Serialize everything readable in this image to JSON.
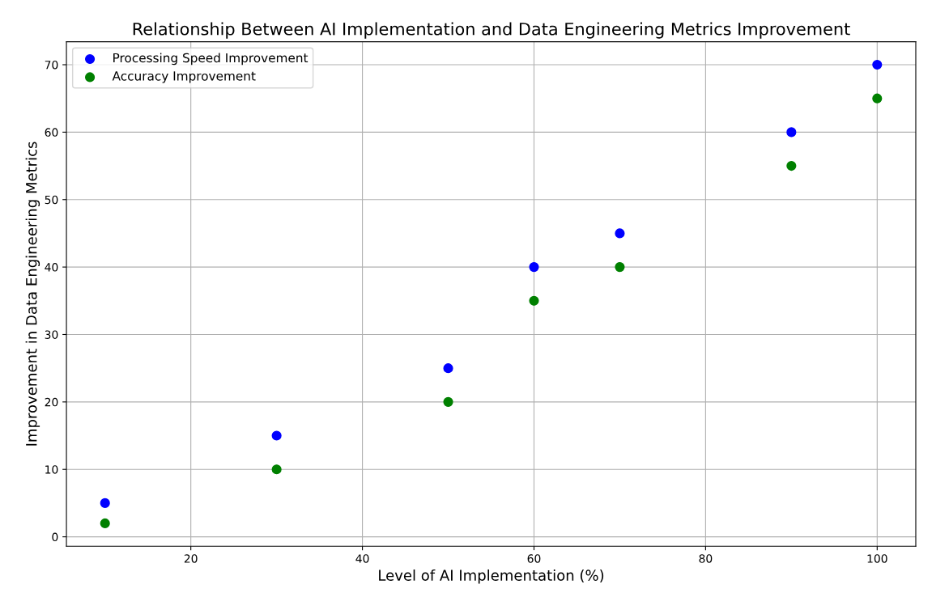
{
  "chart_data": {
    "type": "scatter",
    "title": "Relationship Between AI Implementation and Data Engineering Metrics Improvement",
    "xlabel": "Level of AI Implementation (%)",
    "ylabel": "Improvement in Data Engineering Metrics",
    "x": [
      10,
      30,
      50,
      60,
      70,
      90,
      100
    ],
    "series": [
      {
        "name": "Processing Speed Improvement",
        "color": "#0000ff",
        "values": [
          5,
          15,
          25,
          40,
          45,
          60,
          70
        ]
      },
      {
        "name": "Accuracy Improvement",
        "color": "#008000",
        "values": [
          2,
          10,
          20,
          35,
          40,
          55,
          65
        ]
      }
    ],
    "xlim": [
      5.5,
      104.5
    ],
    "ylim": [
      -1.4,
      73.4
    ],
    "xticks": [
      20,
      40,
      60,
      80,
      100
    ],
    "yticks": [
      0,
      10,
      20,
      30,
      40,
      50,
      60,
      70
    ],
    "grid": true,
    "legend": "top left",
    "marker": "circle"
  }
}
